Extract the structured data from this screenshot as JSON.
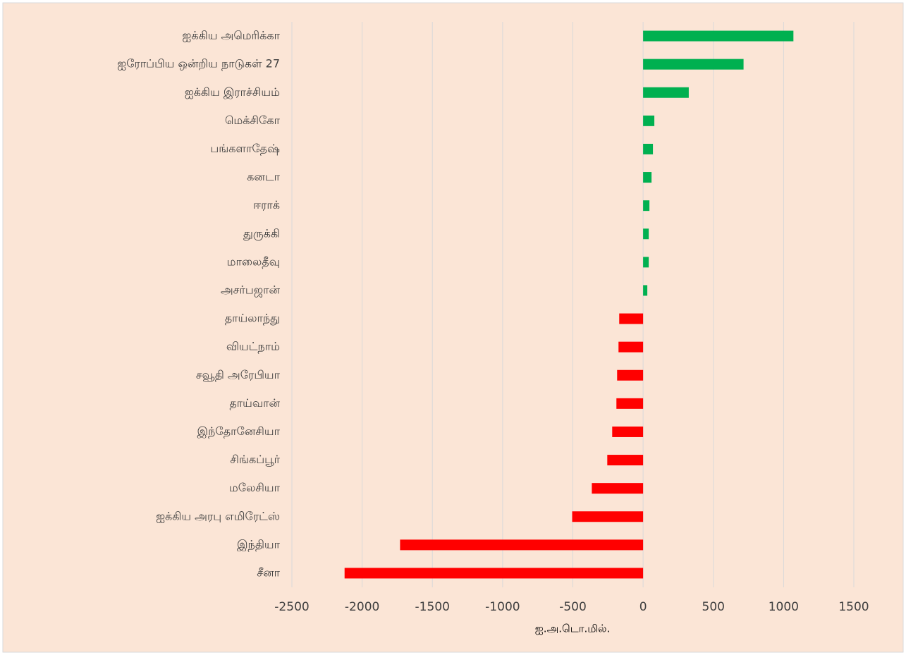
{
  "chart_data": {
    "type": "hbar",
    "categories": [
      "ஐக்கிய அமெரிக்கா",
      "ஐரோப்பிய ஒன்றிய நாடுகள் 27",
      "ஐக்கிய இராச்சியம்",
      "மெக்சிகோ",
      "பங்களாதேஷ்",
      "கனடா",
      "ஈராக்",
      "துருக்கி",
      "மாலைதீவு",
      "அசர்பஜான்",
      "தாய்லாந்து",
      "வியட்நாம்",
      "சவூதி அரேபியா",
      "தாய்வான்",
      "இந்தோனேசியா",
      "சிங்கப்பூர்",
      "மலேசியா",
      "ஐக்கிய அரபு எமிரேட்ஸ்",
      "இந்தியா",
      "சீனா"
    ],
    "values": [
      1070,
      715,
      325,
      80,
      70,
      60,
      45,
      40,
      40,
      30,
      -170,
      -175,
      -185,
      -190,
      -220,
      -255,
      -365,
      -505,
      -1730,
      -2125
    ],
    "colors": [
      "#00b050",
      "#00b050",
      "#00b050",
      "#00b050",
      "#00b050",
      "#00b050",
      "#00b050",
      "#00b050",
      "#00b050",
      "#00b050",
      "#ff0000",
      "#ff0000",
      "#ff0000",
      "#ff0000",
      "#ff0000",
      "#ff0000",
      "#ff0000",
      "#ff0000",
      "#ff0000",
      "#ff0000"
    ],
    "xlabel": "ஐ.அ.டொ.மில்.",
    "xlim": [
      -2500,
      1500
    ],
    "xticks": [
      -2500,
      -2000,
      -1500,
      -1000,
      -500,
      0,
      500,
      1000,
      1500
    ],
    "grid": true
  }
}
